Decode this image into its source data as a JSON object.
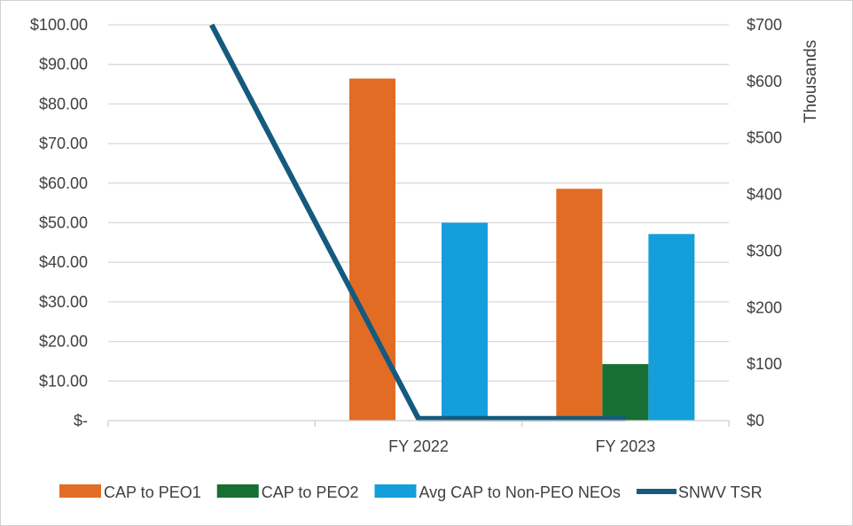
{
  "chart_data": {
    "type": "bar",
    "categories": [
      "",
      "FY 2022",
      "FY 2023"
    ],
    "series": [
      {
        "name": "CAP to PEO1",
        "axis": "right",
        "color": "#E36C25",
        "values": [
          null,
          605,
          410
        ]
      },
      {
        "name": "CAP to PEO2",
        "axis": "right",
        "color": "#176F34",
        "values": [
          null,
          null,
          100
        ]
      },
      {
        "name": "Avg CAP to Non-PEO NEOs",
        "axis": "right",
        "color": "#149FDB",
        "values": [
          null,
          350,
          330
        ]
      },
      {
        "name": "SNWV TSR",
        "axis": "left",
        "type": "line",
        "color": "#155A7E",
        "values": [
          100,
          0.5,
          0.5
        ]
      }
    ],
    "left_axis": {
      "ylim": [
        0,
        100
      ],
      "ticks": [
        0,
        10,
        20,
        30,
        40,
        50,
        60,
        70,
        80,
        90,
        100
      ],
      "tick_labels": [
        "$-",
        "$10.00",
        "$20.00",
        "$30.00",
        "$40.00",
        "$50.00",
        "$60.00",
        "$70.00",
        "$80.00",
        "$90.00",
        "$100.00"
      ]
    },
    "right_axis": {
      "ylim": [
        0,
        700
      ],
      "ticks": [
        0,
        100,
        200,
        300,
        400,
        500,
        600,
        700
      ],
      "tick_labels": [
        "$0",
        "$100",
        "$200",
        "$300",
        "$400",
        "$500",
        "$600",
        "$700"
      ],
      "unit_label": "Thousands"
    },
    "grid": true,
    "legend_position": "bottom"
  }
}
